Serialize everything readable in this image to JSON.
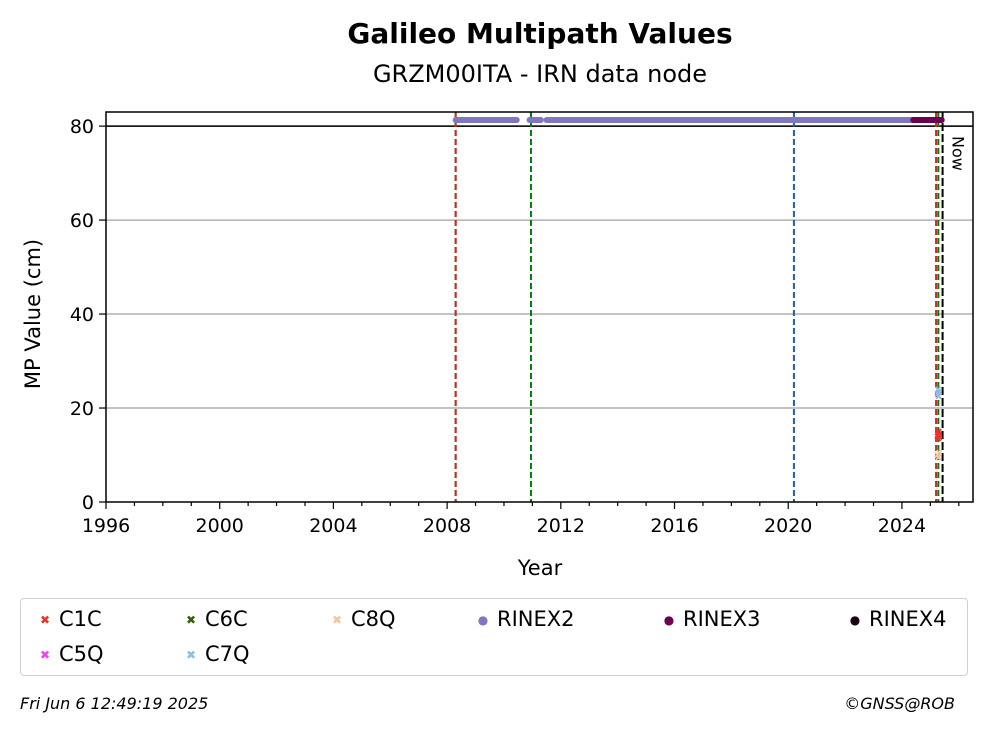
{
  "chart_data": {
    "type": "scatter",
    "title": "Galileo Multipath Values",
    "subtitle": "GRZM00ITA - IRN data node",
    "xlabel": "Year",
    "ylabel": "MP Value (cm)",
    "xlim": [
      1996,
      2026.5
    ],
    "ylim": [
      0,
      83
    ],
    "x_ticks": [
      "1996",
      "2000",
      "2004",
      "2008",
      "2012",
      "2016",
      "2020",
      "2024"
    ],
    "y_ticks": [
      "0",
      "20",
      "40",
      "60",
      "80"
    ],
    "grid": "horizontal",
    "reference_line_y": 80,
    "now_label": "Now",
    "now_year": 2025.43,
    "vertical_lines": [
      {
        "year": 2008.3,
        "color": "#008000"
      },
      {
        "year": 2008.3,
        "color": "#d62728"
      },
      {
        "year": 2010.95,
        "color": "#008000"
      },
      {
        "year": 2020.2,
        "color": "#1f5fa6"
      },
      {
        "year": 2025.2,
        "color": "#d62728"
      },
      {
        "year": 2025.28,
        "color": "#008000"
      },
      {
        "year": 2025.43,
        "color": "#000000"
      }
    ],
    "series": [
      {
        "name": "C1C",
        "color": "#e8352a",
        "marker": "x",
        "points": [
          [
            2025.25,
            14
          ],
          [
            2025.27,
            13.5
          ],
          [
            2025.29,
            15
          ],
          [
            2025.3,
            14.5
          ],
          [
            2025.32,
            13.8
          ]
        ]
      },
      {
        "name": "C5Q",
        "color": "#ee44ee",
        "marker": "x",
        "points": []
      },
      {
        "name": "C6C",
        "color": "#3a5f0b",
        "marker": "x",
        "points": []
      },
      {
        "name": "C7Q",
        "color": "#8fbfe0",
        "marker": "x",
        "points": [
          [
            2025.25,
            23
          ],
          [
            2025.27,
            24
          ],
          [
            2025.29,
            22.5
          ],
          [
            2025.31,
            23.5
          ]
        ]
      },
      {
        "name": "C8Q",
        "color": "#f0c8a0",
        "marker": "x",
        "points": [
          [
            2025.25,
            10
          ],
          [
            2025.28,
            9.5
          ],
          [
            2025.31,
            10.5
          ]
        ]
      },
      {
        "name": "RINEX2",
        "color": "#8078be",
        "marker": "o",
        "segments": [
          [
            2008.3,
            2010.45
          ],
          [
            2010.9,
            2011.3
          ],
          [
            2011.5,
            2024.5
          ]
        ],
        "y": 81.3
      },
      {
        "name": "RINEX3",
        "color": "#6a0050",
        "marker": "o",
        "segments": [
          [
            2024.4,
            2025.4
          ]
        ],
        "y": 81.3
      },
      {
        "name": "RINEX4",
        "color": "#1a0010",
        "marker": "o",
        "points": []
      }
    ]
  },
  "legend": [
    {
      "label": "C1C",
      "color": "#e8352a",
      "symbol": "x"
    },
    {
      "label": "C6C",
      "color": "#3a5f0b",
      "symbol": "x"
    },
    {
      "label": "C8Q",
      "color": "#f0c8a0",
      "symbol": "x"
    },
    {
      "label": "RINEX2",
      "color": "#8078be",
      "symbol": "dot"
    },
    {
      "label": "RINEX3",
      "color": "#6a0050",
      "symbol": "dot"
    },
    {
      "label": "RINEX4",
      "color": "#1a0010",
      "symbol": "dot"
    },
    {
      "label": "C5Q",
      "color": "#ee44ee",
      "symbol": "x"
    },
    {
      "label": "C7Q",
      "color": "#8fbfe0",
      "symbol": "x"
    }
  ],
  "footer": {
    "timestamp": "Fri Jun  6 12:49:19 2025",
    "credit": "©GNSS@ROB"
  }
}
